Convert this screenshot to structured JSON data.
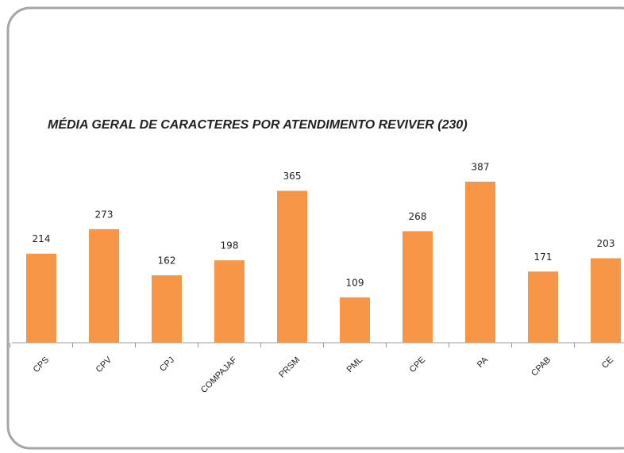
{
  "chart_data": {
    "type": "bar",
    "title": "MÉDIA GERAL DE CARACTERES POR ATENDIMENTO REVIVER (230)",
    "categories": [
      "CPS",
      "CPV",
      "CPJ",
      "COMPAJAF",
      "PRSM",
      "PML",
      "CPE",
      "PA",
      "CPAB",
      "CE"
    ],
    "values": [
      214,
      273,
      162,
      198,
      365,
      109,
      268,
      387,
      171,
      203
    ],
    "color": "#f79646"
  }
}
